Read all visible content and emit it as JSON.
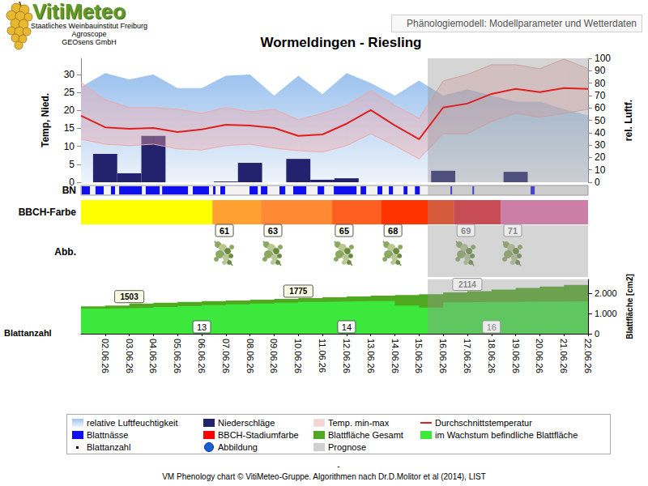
{
  "header": {
    "logo": "VitiMeteo",
    "institutions": [
      "Staatliches Weinbauinstitut Freiburg",
      "Agroscope",
      "GEOsens GmbH"
    ],
    "subtitle": "Phänologiemodell: Modellparameter und Wetterdaten"
  },
  "chart_data": {
    "type": "phenology",
    "title": "Wormeldingen - Riesling",
    "xlim": [
      1,
      22
    ],
    "xticks": [
      {
        "value": 2,
        "label": "02.06.26"
      },
      {
        "value": 3,
        "label": "03.06.26"
      },
      {
        "value": 4,
        "label": "04.06.26"
      },
      {
        "value": 5,
        "label": "05.06.26"
      },
      {
        "value": 6,
        "label": "06.06.26"
      },
      {
        "value": 7,
        "label": "07.06.26"
      },
      {
        "value": 8,
        "label": "08.06.26"
      },
      {
        "value": 9,
        "label": "09.06.26"
      },
      {
        "value": 10,
        "label": "10.06.26"
      },
      {
        "value": 11,
        "label": "11.06.26"
      },
      {
        "value": 12,
        "label": "12.06.26"
      },
      {
        "value": 13,
        "label": "13.06.26"
      },
      {
        "value": 14,
        "label": "14.06.26"
      },
      {
        "value": 15,
        "label": "15.06.26"
      },
      {
        "value": 16,
        "label": "16.06.26"
      },
      {
        "value": 17,
        "label": "17.06.26"
      },
      {
        "value": 18,
        "label": "18.06.26"
      },
      {
        "value": 19,
        "label": "19.06.26"
      },
      {
        "value": 20,
        "label": "20.06.26"
      },
      {
        "value": 21,
        "label": "21.06.26"
      },
      {
        "value": 22,
        "label": "22.06.26"
      }
    ],
    "forecast_from": 15.36,
    "forecast_name": "Prognose",
    "legend": "bottom",
    "weather": {
      "type": "line",
      "ylabel": "Temp, Nied.",
      "ylim": [
        0,
        34.5
      ],
      "yticks": [
        0,
        5,
        10,
        15,
        20,
        25,
        30
      ],
      "y2label": "rel. Luftf.",
      "y2lim": [
        0,
        100
      ],
      "y2ticks": [
        0,
        10,
        20,
        30,
        40,
        50,
        60,
        70,
        80,
        90,
        100
      ],
      "grid": false,
      "x": [
        1,
        2,
        3,
        4,
        5,
        6,
        7,
        8,
        9,
        10,
        11,
        12,
        13,
        14,
        15,
        16,
        17,
        18,
        19,
        20,
        21,
        22
      ],
      "series": [
        {
          "name": "relative Luftfeuchtigkeit",
          "type": "area",
          "axis": "y2",
          "color": "#9cc2ee",
          "values": [
            77,
            88,
            83,
            87,
            76,
            76,
            86,
            87,
            70,
            86,
            71,
            88,
            80,
            70,
            82,
            70,
            75,
            70,
            65,
            65,
            59,
            54
          ]
        },
        {
          "name": "Niederschläge",
          "type": "bar",
          "color": "#22226e",
          "values": [
            0,
            7.9,
            2.5,
            12.9,
            0,
            0,
            0.2,
            5.4,
            0,
            6.5,
            0.7,
            1.1,
            0,
            0,
            0,
            3.2,
            0,
            0,
            2.9,
            0,
            0,
            0
          ]
        },
        {
          "name": "Temp. min-max",
          "type": "band",
          "color": "#f2a8a8",
          "low": [
            12.0,
            10.6,
            10.2,
            10.6,
            9.3,
            9.0,
            10.2,
            10.6,
            9.5,
            8.8,
            8.4,
            10.2,
            13.5,
            10.2,
            6.5,
            13.5,
            13.5,
            16.9,
            19.2,
            18.1,
            19.2,
            20.3
          ],
          "high": [
            27.8,
            23.0,
            20.8,
            20.8,
            20.3,
            19.2,
            20.8,
            19.6,
            20.3,
            17.4,
            19.2,
            21.4,
            25.5,
            21.4,
            17.8,
            28.2,
            30.0,
            32.7,
            32.7,
            31.6,
            34.3,
            31.6
          ]
        },
        {
          "name": "Durchschnittstemperatur",
          "type": "line",
          "color": "#e02020",
          "values": [
            18.5,
            15.3,
            14.9,
            15.1,
            14.0,
            14.7,
            16.0,
            15.8,
            15.1,
            12.9,
            13.3,
            16.3,
            20.1,
            15.8,
            12.0,
            20.8,
            21.9,
            24.6,
            26.0,
            25.1,
            26.2,
            26.0
          ]
        }
      ]
    },
    "leaf_wetness": {
      "type": "intervals",
      "label": "BN",
      "name": "Blattnässe",
      "color": "#1010ee",
      "intervals": [
        [
          1.03,
          1.37
        ],
        [
          1.6,
          1.94
        ],
        [
          2.24,
          2.41
        ],
        [
          2.58,
          3.52
        ],
        [
          3.68,
          4.26
        ],
        [
          4.36,
          5.43
        ],
        [
          5.63,
          6.3
        ],
        [
          6.47,
          6.57
        ],
        [
          6.77,
          6.97
        ],
        [
          7.98,
          8.32
        ],
        [
          8.45,
          8.72
        ],
        [
          9.22,
          9.46
        ],
        [
          9.79,
          10.33
        ],
        [
          10.8,
          11.07
        ],
        [
          11.47,
          12.41
        ],
        [
          12.58,
          12.81
        ],
        [
          13.28,
          13.48
        ],
        [
          13.75,
          13.92
        ],
        [
          14.36,
          14.52
        ],
        [
          14.83,
          15.03
        ],
        [
          16.3,
          16.37
        ],
        [
          17.21,
          17.28
        ],
        [
          19.62,
          19.79
        ]
      ]
    },
    "bbch": {
      "type": "stages",
      "label": "BBCH-Farbe",
      "name": "BBCH-Stadiumfarbe",
      "color": "#ff0000",
      "stages": [
        {
          "start": 1,
          "stage": null,
          "color": "#ffff00"
        },
        {
          "start": 6.44,
          "stage": 61,
          "color": "#ffa030"
        },
        {
          "start": 8.45,
          "stage": 63,
          "color": "#ff8a33"
        },
        {
          "start": 11.4,
          "stage": 65,
          "color": "#ff6020"
        },
        {
          "start": 13.42,
          "stage": 68,
          "color": "#ff3300"
        },
        {
          "start": 16.44,
          "stage": 69,
          "color": "#e81c28"
        },
        {
          "start": 18.38,
          "stage": 71,
          "color": "#ee70b2"
        }
      ]
    },
    "images": {
      "label": "Abb.",
      "name": "Abbildung"
    },
    "leaf": {
      "type": "area",
      "ylabel": "Blattfläche [cm2]",
      "ylim": [
        0,
        2700
      ],
      "yticks": [
        0,
        {
          "value": 1000,
          "label": "1.000"
        },
        {
          "value": 2000,
          "label": "2.000"
        }
      ],
      "x": [
        1,
        2,
        3,
        4,
        5,
        6,
        7,
        8,
        9,
        10,
        11,
        12,
        13,
        14,
        15,
        16,
        17,
        18,
        19,
        20,
        21,
        22
      ],
      "series": [
        {
          "name": "Blattfläche Gesamt",
          "color": "#50a820",
          "values": [
            1360,
            1400,
            1503,
            1540,
            1580,
            1620,
            1650,
            1690,
            1730,
            1775,
            1810,
            1850,
            1890,
            1920,
            1960,
            2060,
            2114,
            2200,
            2280,
            2350,
            2430,
            2500
          ],
          "label_x": [
            3,
            10,
            17
          ]
        },
        {
          "name": "im Wachstum befindliche Blattfläche",
          "color": "#3ce83c",
          "values": [
            1250,
            1270,
            1290,
            1330,
            1380,
            1420,
            1460,
            1500,
            1540,
            1580,
            1600,
            1620,
            1620,
            1400,
            1300,
            1560,
            1580,
            1580,
            1600,
            1600,
            1610,
            1620
          ]
        }
      ],
      "count": {
        "name": "Blattanzahl",
        "x": [
          6,
          12,
          18
        ],
        "values": [
          13,
          14,
          16
        ]
      }
    }
  },
  "footer": {
    "mark": "-",
    "credit": "VM Phenology chart © VitiMeteo-Gruppe. Algorithmen nach Dr.D.Molitor et al (2014), LIST"
  }
}
